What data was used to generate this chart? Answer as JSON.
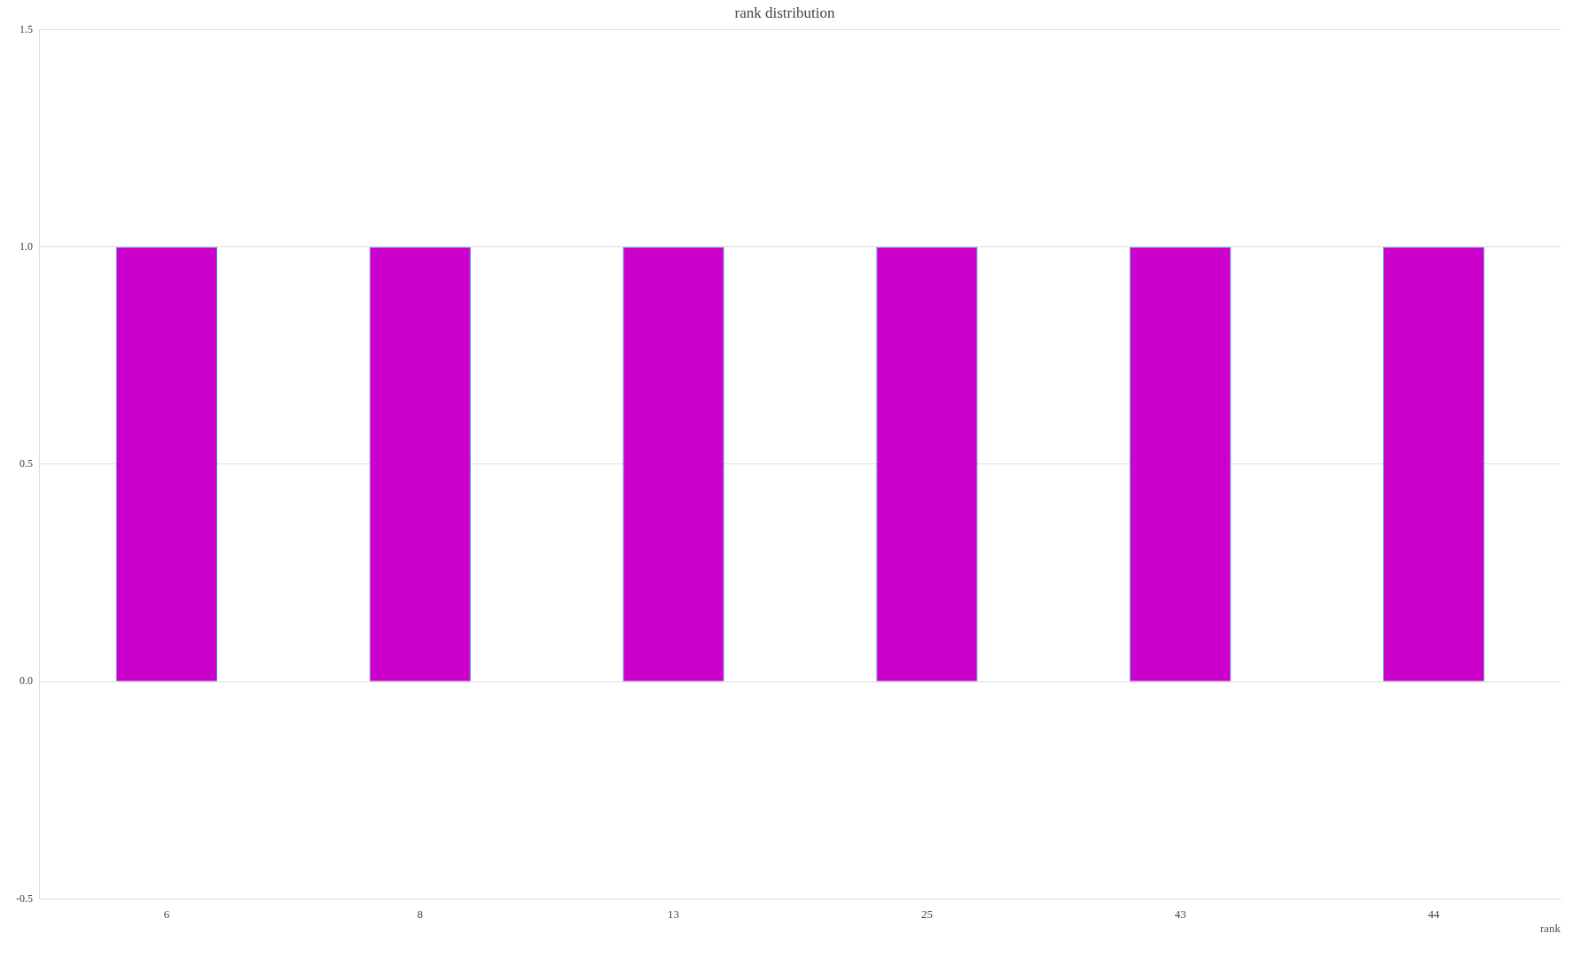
{
  "chart_data": {
    "type": "bar",
    "title": "rank distribution",
    "xlabel": "rank",
    "categories": [
      "6",
      "8",
      "13",
      "25",
      "43",
      "44"
    ],
    "values": [
      1,
      1,
      1,
      1,
      1,
      1
    ],
    "color": "#cc00cc",
    "ylim": [
      -0.5,
      1.5
    ],
    "yticks": [
      {
        "value": -0.5,
        "label": "-0.5"
      },
      {
        "value": 0,
        "label": "0.0"
      },
      {
        "value": 0.5,
        "label": "0.5"
      },
      {
        "value": 1,
        "label": "1.0"
      },
      {
        "value": 1.5,
        "label": "1.5"
      }
    ],
    "grid": "y",
    "legend": false
  }
}
